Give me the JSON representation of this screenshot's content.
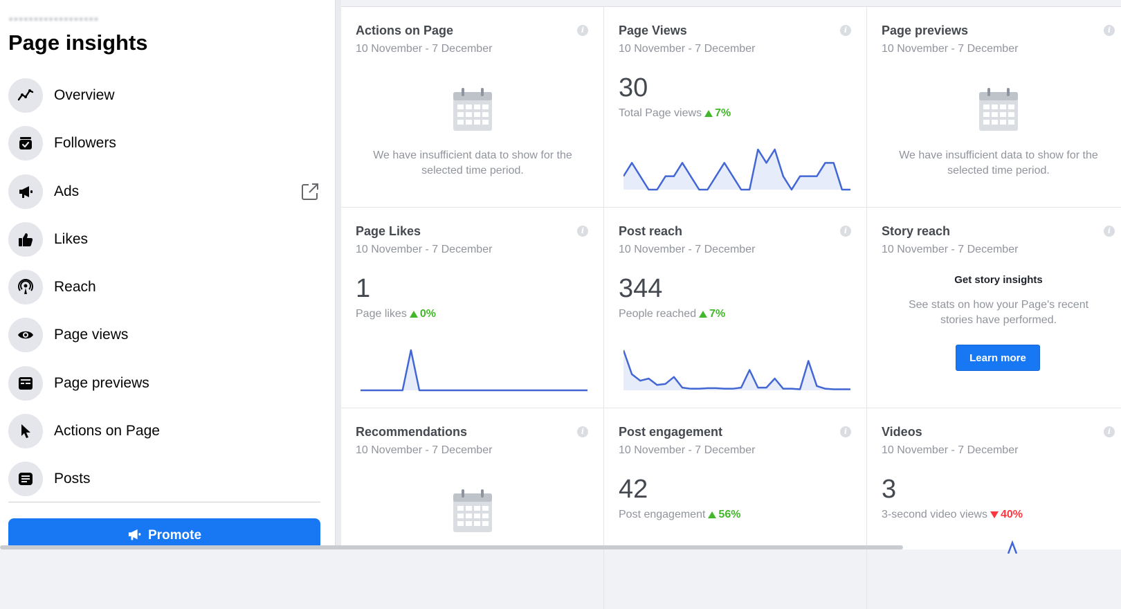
{
  "sidebar": {
    "title": "Page insights",
    "items": [
      {
        "label": "Overview",
        "icon": "trend-line-icon"
      },
      {
        "label": "Followers",
        "icon": "followers-icon"
      },
      {
        "label": "Ads",
        "icon": "megaphone-icon"
      },
      {
        "label": "Likes",
        "icon": "thumbs-up-icon"
      },
      {
        "label": "Reach",
        "icon": "broadcast-icon"
      },
      {
        "label": "Page views",
        "icon": "eye-icon"
      },
      {
        "label": "Page previews",
        "icon": "preview-card-icon"
      },
      {
        "label": "Actions on Page",
        "icon": "cursor-icon"
      },
      {
        "label": "Posts",
        "icon": "posts-icon"
      }
    ],
    "promote_label": "Promote"
  },
  "cards": {
    "actions": {
      "title": "Actions on Page",
      "date": "10 November - 7 December",
      "empty": "We have insufficient data to show for the selected time period."
    },
    "views": {
      "title": "Page Views",
      "date": "10 November - 7 December",
      "value": "30",
      "metric": "Total Page views",
      "delta": "7%",
      "trend": "up"
    },
    "previews": {
      "title": "Page previews",
      "date": "10 November - 7 December",
      "empty": "We have insufficient data to show for the selected time period."
    },
    "likes": {
      "title": "Page Likes",
      "date": "10 November - 7 December",
      "value": "1",
      "metric": "Page likes",
      "delta": "0%",
      "trend": "up"
    },
    "reach": {
      "title": "Post reach",
      "date": "10 November - 7 December",
      "value": "344",
      "metric": "People reached",
      "delta": "7%",
      "trend": "up"
    },
    "story": {
      "title": "Story reach",
      "date": "10 November - 7 December",
      "cta_title": "Get story insights",
      "cta_desc": "See stats on how your Page's recent stories have performed.",
      "button": "Learn more"
    },
    "recs": {
      "title": "Recommendations",
      "date": "10 November - 7 December"
    },
    "engagement": {
      "title": "Post engagement",
      "date": "10 November - 7 December",
      "value": "42",
      "metric": "Post engagement",
      "delta": "56%",
      "trend": "up"
    },
    "videos": {
      "title": "Videos",
      "date": "10 November - 7 December",
      "value": "3",
      "metric": "3-second video views",
      "delta": "40%",
      "trend": "down"
    }
  },
  "chart_data": [
    {
      "type": "line",
      "series": [
        {
          "values": [
            1,
            2,
            1,
            0,
            0,
            1,
            1,
            2,
            1,
            0,
            0,
            1,
            2,
            1,
            0,
            0,
            3,
            2,
            3,
            1,
            0,
            1,
            1,
            1,
            2,
            2,
            0,
            0
          ]
        }
      ]
    },
    {
      "type": "line",
      "series": [
        {
          "values": [
            0,
            0,
            0,
            0,
            0,
            0,
            1,
            0,
            0,
            0,
            0,
            0,
            0,
            0,
            0,
            0,
            0,
            0,
            0,
            0,
            0,
            0,
            0,
            0,
            0,
            0,
            0,
            0
          ]
        }
      ]
    },
    {
      "type": "line",
      "series": [
        {
          "values": [
            75,
            30,
            18,
            22,
            10,
            12,
            25,
            5,
            3,
            3,
            4,
            4,
            3,
            3,
            5,
            38,
            5,
            5,
            22,
            3,
            3,
            2,
            55,
            8,
            3,
            2,
            2,
            2
          ]
        }
      ]
    }
  ],
  "colors": {
    "accent": "#1877f2",
    "up": "#42b72a",
    "down": "#fa383e",
    "line": "#4267d4"
  }
}
